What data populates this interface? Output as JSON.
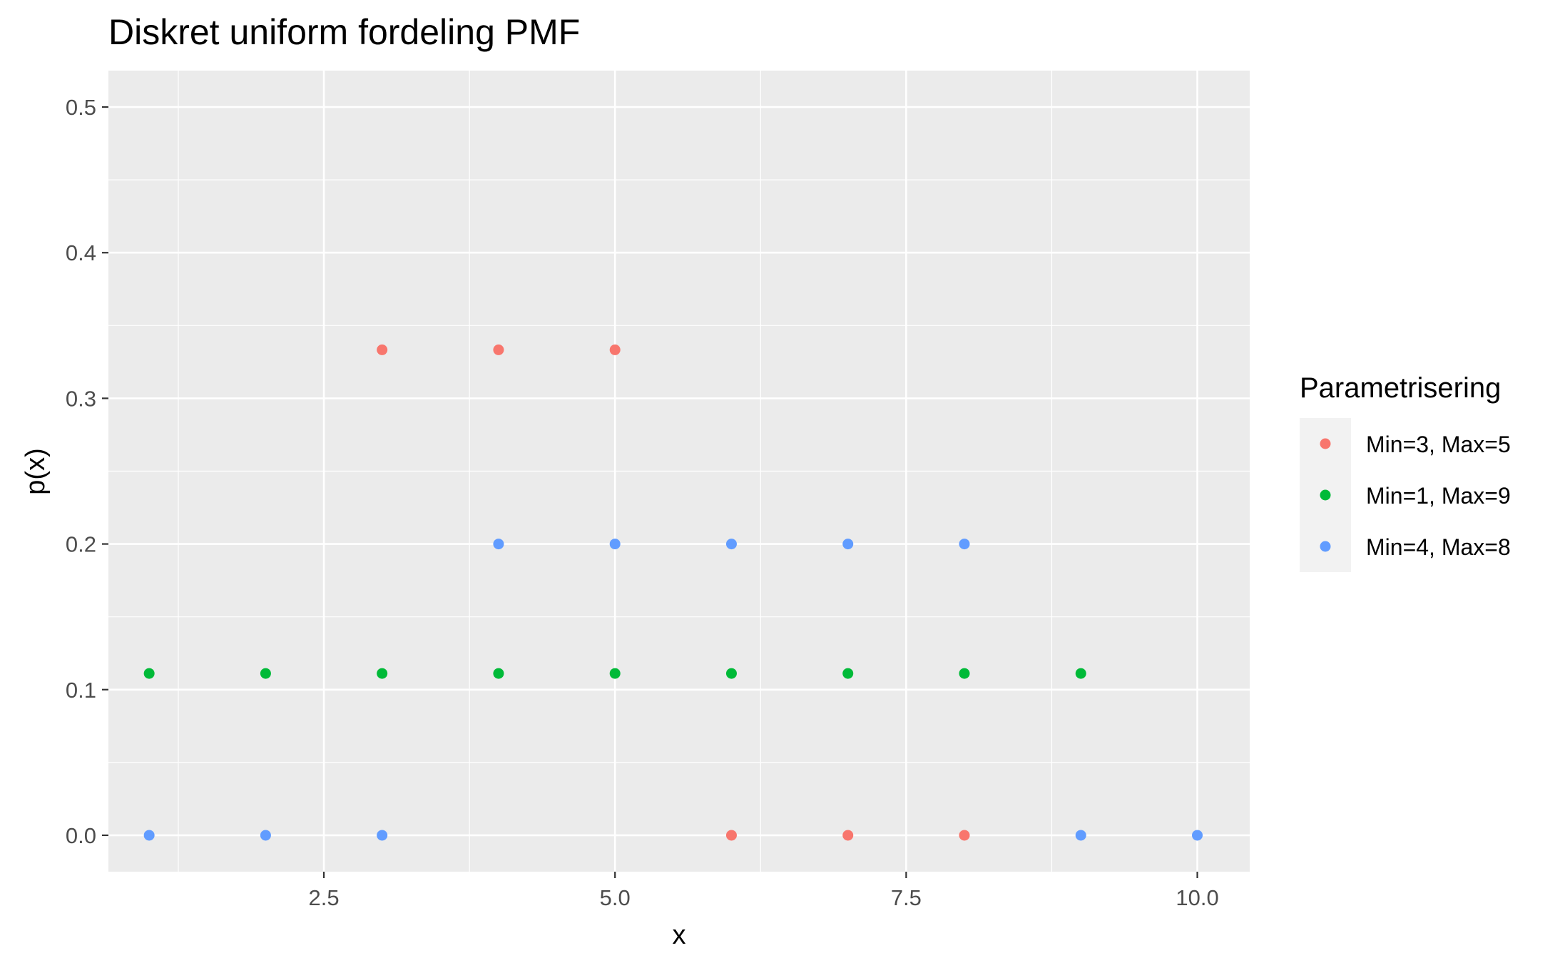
{
  "chart_data": {
    "type": "scatter",
    "title": "Diskret uniform fordeling PMF",
    "xlabel": "x",
    "ylabel": "p(x)",
    "xlim": [
      0.65,
      10.45
    ],
    "ylim": [
      -0.025,
      0.525
    ],
    "x_ticks": [
      2.5,
      5.0,
      7.5,
      10.0
    ],
    "x_tick_labels": [
      "2.5",
      "5.0",
      "7.5",
      "10.0"
    ],
    "y_ticks": [
      0.0,
      0.1,
      0.2,
      0.3,
      0.4,
      0.5
    ],
    "y_tick_labels": [
      "0.0",
      "0.1",
      "0.2",
      "0.3",
      "0.4",
      "0.5"
    ],
    "grid": true,
    "legend": {
      "title": "Parametrisering",
      "placement": "right"
    },
    "series": [
      {
        "name": "Min=3, Max=5",
        "color": "#F8766D",
        "x": [
          3,
          4,
          5,
          6,
          7,
          8
        ],
        "y": [
          0.3333,
          0.3333,
          0.3333,
          0.0,
          0.0,
          0.0
        ]
      },
      {
        "name": "Min=1, Max=9",
        "color": "#00BA38",
        "x": [
          1,
          2,
          3,
          4,
          5,
          6,
          7,
          8,
          9
        ],
        "y": [
          0.1111,
          0.1111,
          0.1111,
          0.1111,
          0.1111,
          0.1111,
          0.1111,
          0.1111,
          0.1111
        ]
      },
      {
        "name": "Min=4, Max=8",
        "color": "#619CFF",
        "x": [
          1,
          2,
          3,
          4,
          5,
          6,
          7,
          8,
          9,
          10
        ],
        "y": [
          0.0,
          0.0,
          0.0,
          0.2,
          0.2,
          0.2,
          0.2,
          0.2,
          0.0,
          0.0
        ]
      }
    ]
  }
}
